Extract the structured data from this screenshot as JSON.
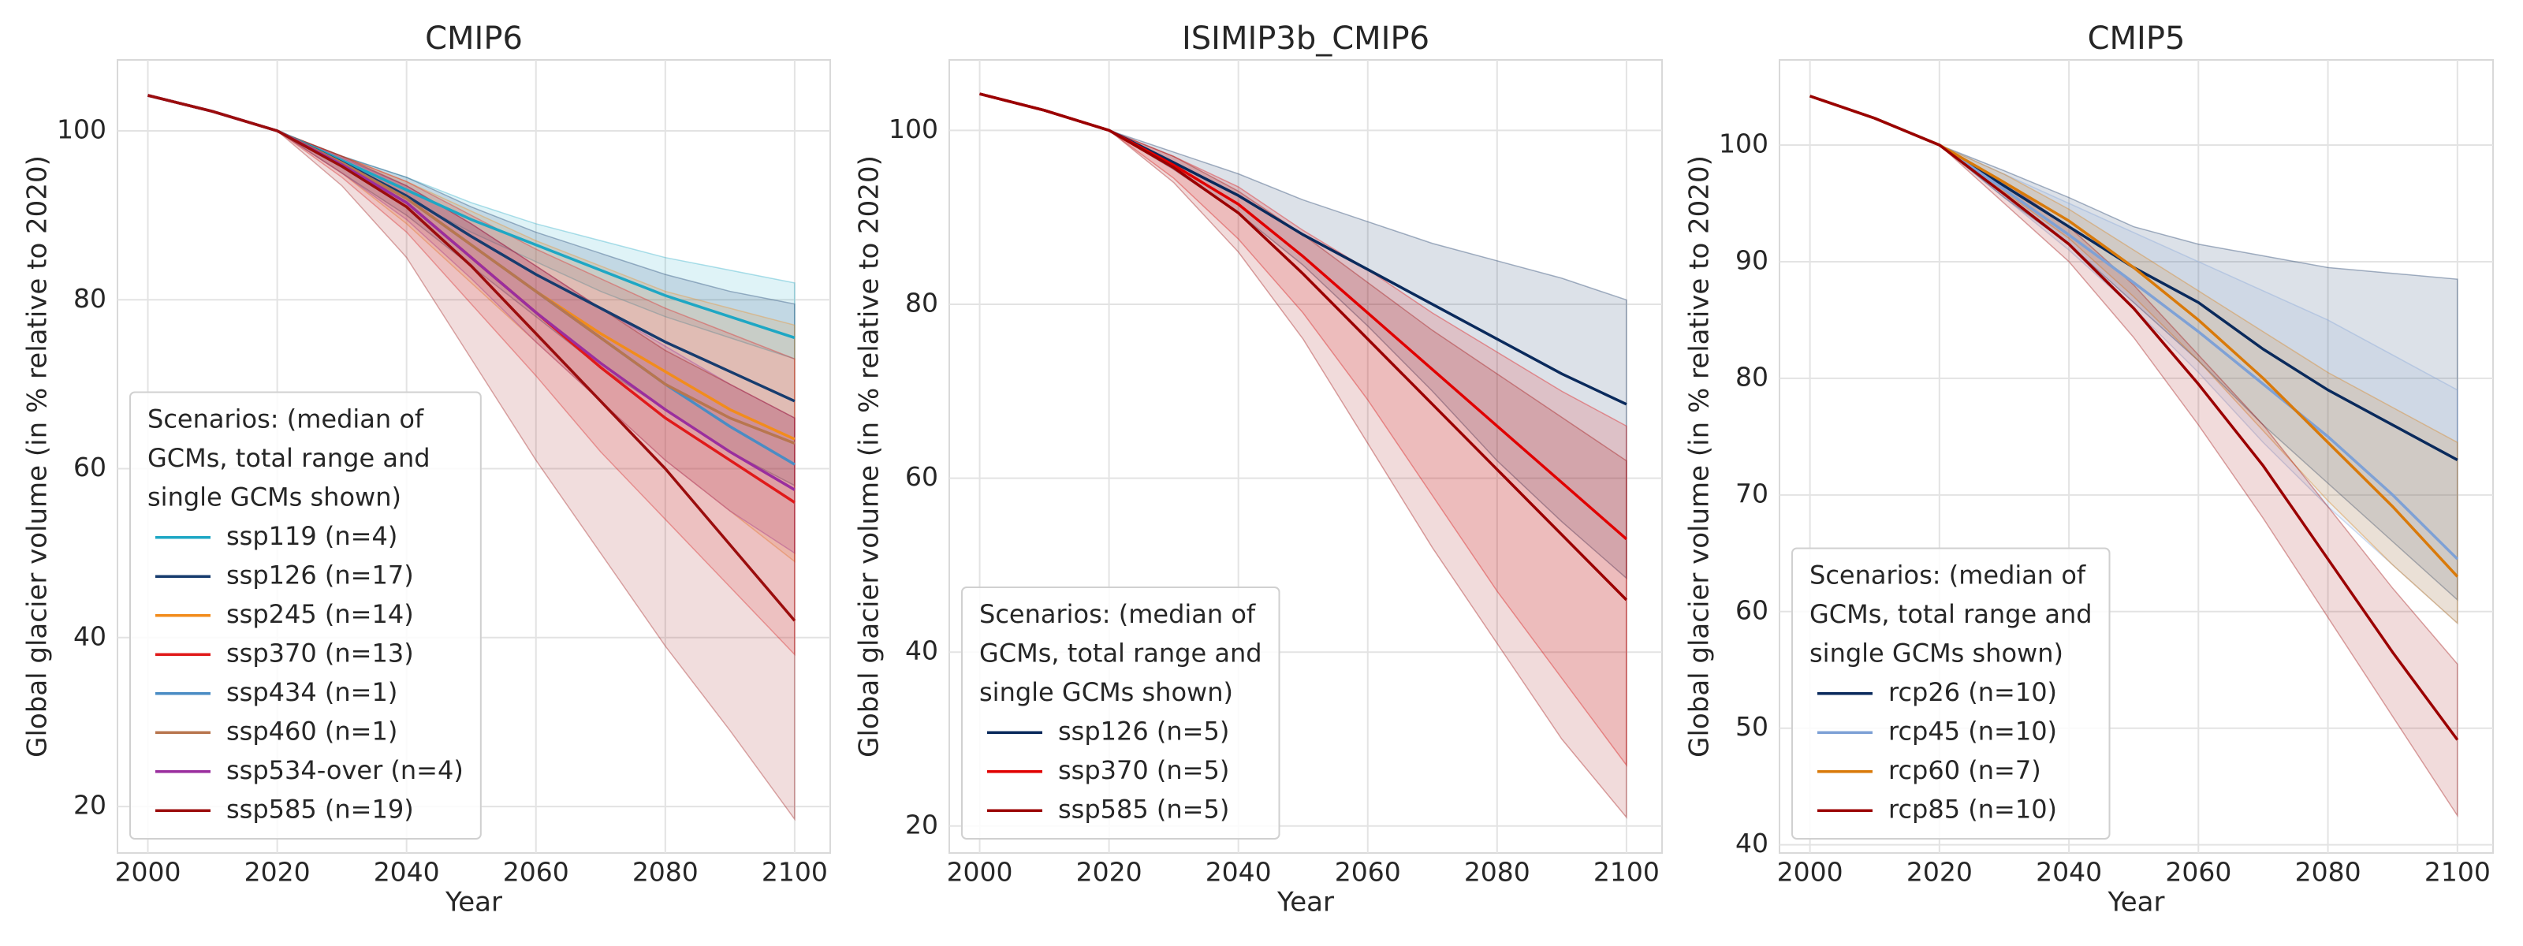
{
  "chart_data": [
    {
      "type": "line",
      "title": "CMIP6",
      "xlabel": "Year",
      "ylabel": "Global glacier volume (in % relative to 2020)",
      "x": [
        2000,
        2010,
        2020,
        2030,
        2040,
        2050,
        2060,
        2070,
        2080,
        2090,
        2100
      ],
      "xlim": [
        1995.3,
        2105.5
      ],
      "xticks": [
        2000,
        2020,
        2040,
        2060,
        2080,
        2100
      ],
      "ylim": [
        14.5,
        108.4
      ],
      "yticks": [
        20,
        40,
        60,
        80,
        100
      ],
      "grid": true,
      "legend": "lower left",
      "legend_title": [
        "Scenarios: (median of",
        "GCMs, total range and",
        "single GCMs shown)"
      ],
      "series": [
        {
          "name": "ssp119 (n=4)",
          "color": "#1ea7c4",
          "values": [
            104.2,
            102.3,
            100,
            96.5,
            93,
            89.5,
            86.5,
            83.5,
            80.5,
            78,
            75.5
          ],
          "min": [
            104.2,
            102.3,
            100,
            96,
            92,
            88,
            84.5,
            81,
            78,
            75.5,
            73
          ],
          "max": [
            104.2,
            102.3,
            100,
            97,
            94.5,
            91.5,
            89,
            87,
            85,
            83.5,
            82
          ]
        },
        {
          "name": "ssp126 (n=17)",
          "color": "#173c6e",
          "values": [
            104.2,
            102.3,
            100,
            96.3,
            92.3,
            87.5,
            83,
            79,
            75,
            71.5,
            68
          ],
          "min": [
            104.2,
            102.3,
            100,
            95,
            90,
            84,
            78,
            72,
            67,
            62,
            58
          ],
          "max": [
            104.2,
            102.3,
            100,
            97,
            94.5,
            91,
            88,
            85.5,
            83,
            81,
            79.5
          ]
        },
        {
          "name": "ssp245 (n=14)",
          "color": "#f28c1c",
          "values": [
            104.2,
            102.3,
            100,
            96.2,
            92,
            86.5,
            81,
            76,
            71.5,
            67,
            63.5
          ],
          "min": [
            104.2,
            102.3,
            100,
            95,
            89,
            82,
            75,
            68,
            61,
            55,
            49
          ],
          "max": [
            104.2,
            102.3,
            100,
            97,
            94,
            90.5,
            87,
            84,
            81,
            79,
            77
          ]
        },
        {
          "name": "ssp370 (n=13)",
          "color": "#e01a1a",
          "values": [
            104.2,
            102.3,
            100,
            96,
            91.5,
            85,
            78.5,
            72,
            66,
            61,
            56
          ],
          "min": [
            104.2,
            102.3,
            100,
            94.5,
            88,
            79.5,
            71,
            62,
            54,
            46,
            38
          ],
          "max": [
            104.2,
            102.3,
            100,
            97,
            94,
            90,
            86,
            82.5,
            79,
            76,
            73
          ]
        },
        {
          "name": "ssp434 (n=1)",
          "color": "#4a8cc4",
          "values": [
            104.2,
            102.3,
            100,
            96.2,
            92,
            86.5,
            81,
            75.5,
            70,
            65,
            60.5
          ]
        },
        {
          "name": "ssp460 (n=1)",
          "color": "#b8764f",
          "values": [
            104.2,
            102.3,
            100,
            96.2,
            92,
            86.5,
            81,
            75.5,
            70,
            66,
            63
          ]
        },
        {
          "name": "ssp534-over (n=4)",
          "color": "#9a2e9e",
          "values": [
            104.2,
            102.3,
            100,
            96,
            91.5,
            85,
            78.5,
            72.5,
            67,
            62,
            57.5
          ],
          "min": [
            104.2,
            102.3,
            100,
            95,
            89.5,
            82.5,
            75,
            68,
            61,
            55,
            50
          ],
          "max": [
            104.2,
            102.3,
            100,
            96.8,
            93.5,
            89,
            84,
            79,
            74.5,
            70,
            66
          ]
        },
        {
          "name": "ssp585 (n=19)",
          "color": "#9b0d0d",
          "values": [
            104.2,
            102.3,
            100,
            95.8,
            91,
            84,
            76,
            68,
            60,
            51,
            42
          ],
          "min": [
            104.2,
            102.3,
            100,
            93.5,
            85,
            73,
            61,
            50,
            39,
            29,
            18.5
          ],
          "max": [
            104.2,
            102.3,
            100,
            97,
            93.5,
            89,
            84,
            79,
            74,
            70,
            66
          ]
        }
      ]
    },
    {
      "type": "line",
      "title": "ISIMIP3b_CMIP6",
      "xlabel": "Year",
      "ylabel": "Global glacier volume (in % relative to 2020)",
      "x": [
        2000,
        2010,
        2020,
        2030,
        2040,
        2050,
        2060,
        2070,
        2080,
        2090,
        2100
      ],
      "xlim": [
        1995.3,
        2105.5
      ],
      "xticks": [
        2000,
        2020,
        2040,
        2060,
        2080,
        2100
      ],
      "ylim": [
        16.9,
        108.1
      ],
      "yticks": [
        20,
        40,
        60,
        80,
        100
      ],
      "grid": true,
      "legend": "lower left",
      "legend_title": [
        "Scenarios: (median of",
        "GCMs, total range and",
        "single GCMs shown)"
      ],
      "series": [
        {
          "name": "ssp126 (n=5)",
          "color": "#0a2a5c",
          "values": [
            104.2,
            102.3,
            100,
            96.3,
            92.5,
            88,
            84,
            80,
            76,
            72,
            68.5
          ],
          "min": [
            104.2,
            102.3,
            100,
            95.5,
            90.5,
            84.5,
            77.5,
            70,
            62,
            55,
            48.5
          ],
          "max": [
            104.2,
            102.3,
            100,
            97.5,
            95,
            92,
            89.5,
            87,
            85,
            83,
            80.5
          ]
        },
        {
          "name": "ssp370 (n=5)",
          "color": "#e00000",
          "values": [
            104.2,
            102.3,
            100,
            96,
            91.5,
            85.5,
            79,
            72.5,
            66,
            59.5,
            53
          ],
          "min": [
            104.2,
            102.3,
            100,
            94.5,
            87.5,
            79,
            69,
            58,
            47,
            37,
            27
          ],
          "max": [
            104.2,
            102.3,
            100,
            97,
            93.5,
            88.5,
            84,
            79,
            74.5,
            70,
            66
          ]
        },
        {
          "name": "ssp585 (n=5)",
          "color": "#9b0000",
          "values": [
            104.2,
            102.3,
            100,
            95.7,
            90.5,
            83.5,
            76,
            68.5,
            61,
            53.5,
            46
          ],
          "min": [
            104.2,
            102.3,
            100,
            94,
            86,
            76,
            64,
            52,
            41,
            30,
            21
          ],
          "max": [
            104.2,
            102.3,
            100,
            97,
            93,
            88,
            82.5,
            77,
            72,
            67,
            62
          ]
        }
      ]
    },
    {
      "type": "line",
      "title": "CMIP5",
      "xlabel": "Year",
      "ylabel": "Global glacier volume (in % relative to 2020)",
      "x": [
        2000,
        2010,
        2020,
        2030,
        2040,
        2050,
        2060,
        2070,
        2080,
        2090,
        2100
      ],
      "xlim": [
        1995.3,
        2105.5
      ],
      "xticks": [
        2000,
        2020,
        2040,
        2060,
        2080,
        2100
      ],
      "ylim": [
        39.3,
        107.3
      ],
      "yticks": [
        40,
        50,
        60,
        70,
        80,
        90,
        100
      ],
      "grid": true,
      "legend": "lower left",
      "legend_title": [
        "Scenarios: (median of",
        "GCMs, total range and",
        "single GCMs shown)"
      ],
      "series": [
        {
          "name": "rcp26 (n=10)",
          "color": "#0a2a5c",
          "values": [
            104.2,
            102.3,
            100,
            96.5,
            93,
            89.5,
            86.5,
            82.5,
            79,
            76,
            73
          ],
          "min": [
            104.2,
            102.3,
            100,
            95.5,
            91.5,
            86.5,
            81.5,
            76,
            71,
            66,
            61
          ],
          "max": [
            104.2,
            102.3,
            100,
            97.8,
            95.5,
            93,
            91.5,
            90.5,
            89.5,
            89,
            88.5
          ]
        },
        {
          "name": "rcp45 (n=10)",
          "color": "#7ea1d6",
          "values": [
            104.2,
            102.3,
            100,
            96.2,
            92.3,
            88.2,
            84,
            79.5,
            75,
            70,
            64.5
          ],
          "min": [
            104.2,
            102.3,
            100,
            95.5,
            91,
            86,
            80.5,
            74.5,
            69,
            64,
            59
          ],
          "max": [
            104.2,
            102.3,
            100,
            97.5,
            95,
            92.5,
            90,
            87.5,
            85,
            82,
            79
          ]
        },
        {
          "name": "rcp60 (n=7)",
          "color": "#d97a0a",
          "values": [
            104.2,
            102.3,
            100,
            96.8,
            93.5,
            89.5,
            85,
            80,
            74.5,
            69,
            63
          ],
          "min": [
            104.2,
            102.3,
            100,
            96,
            92,
            87,
            81.5,
            75.5,
            69.5,
            64,
            59
          ],
          "max": [
            104.2,
            102.3,
            100,
            97.5,
            94.5,
            91,
            87.5,
            84,
            80.5,
            77.5,
            74.5
          ]
        },
        {
          "name": "rcp85 (n=10)",
          "color": "#9b0000",
          "values": [
            104.2,
            102.3,
            100,
            95.8,
            91.5,
            86,
            79.5,
            72.5,
            64.5,
            56.5,
            49
          ],
          "min": [
            104.2,
            102.3,
            100,
            95,
            90,
            83.5,
            76,
            68,
            59.5,
            51,
            42.5
          ],
          "max": [
            104.2,
            102.3,
            100,
            96.8,
            93,
            88,
            82,
            76,
            69,
            62,
            55.5
          ]
        }
      ]
    }
  ]
}
